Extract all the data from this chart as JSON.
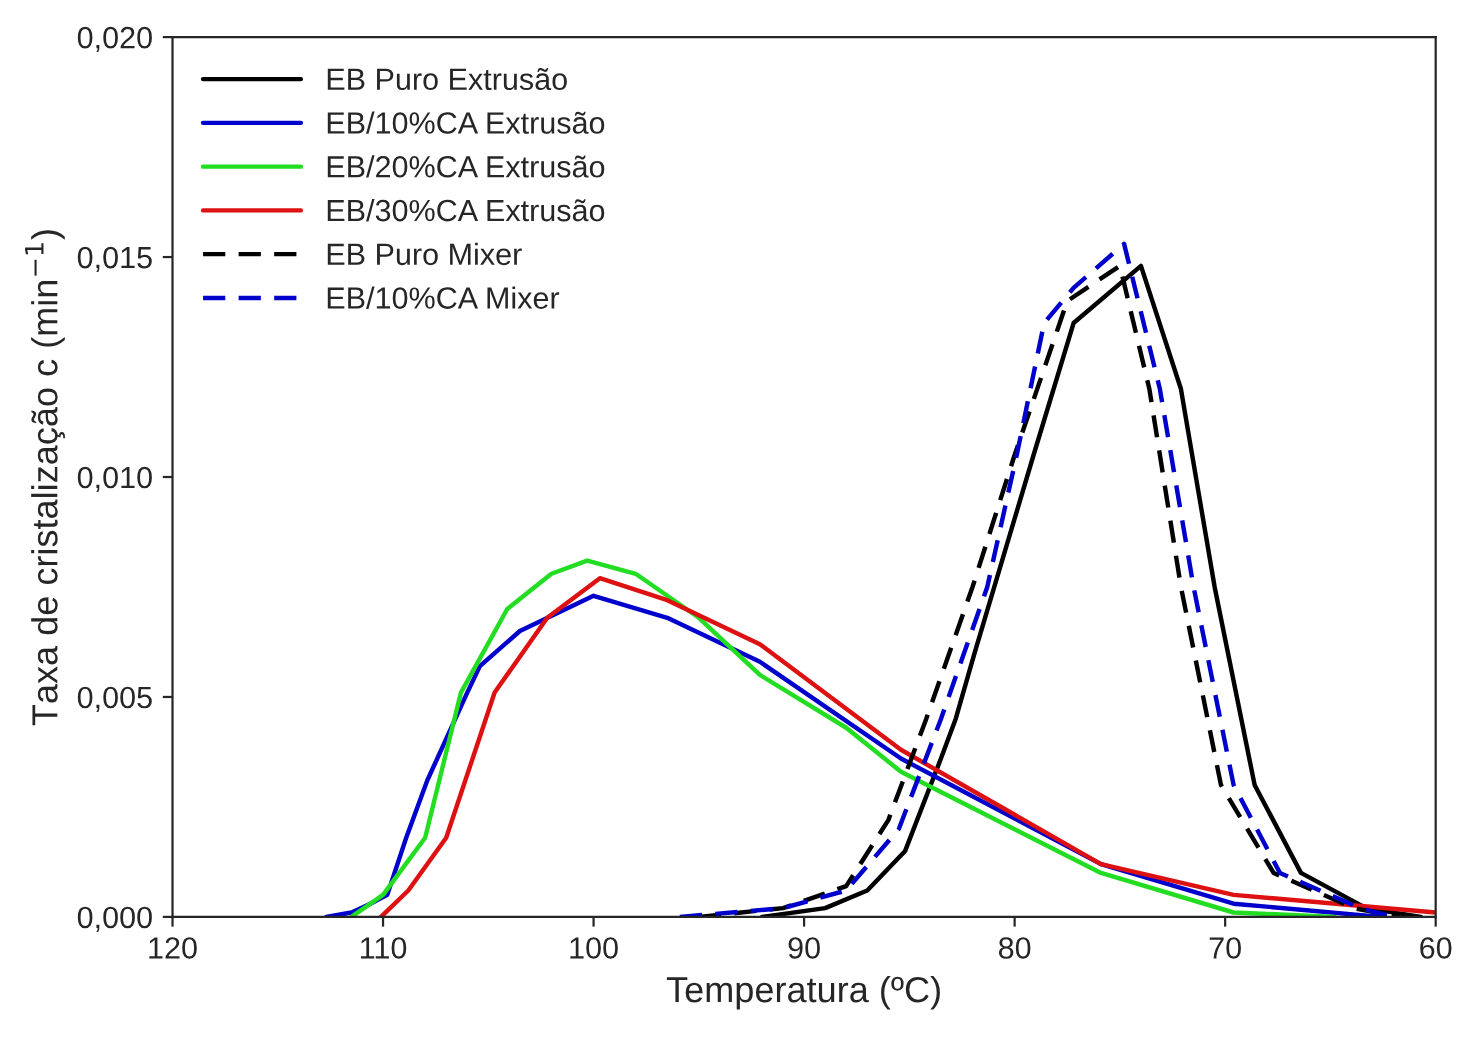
{
  "chart_data": {
    "type": "line",
    "xlabel": "Temperatura (ºC)",
    "ylabel": "Taxa de cristalização c (min$^{−1}$)",
    "xlim": [
      120,
      60
    ],
    "ylim": [
      0,
      0.02
    ],
    "xticks": [
      120,
      110,
      100,
      90,
      80,
      70,
      60
    ],
    "yticks": [
      {
        "value": 0,
        "label": "0,000"
      },
      {
        "value": 0.005,
        "label": "0,005"
      },
      {
        "value": 0.01,
        "label": "0,010"
      },
      {
        "value": 0.015,
        "label": "0,015"
      },
      {
        "value": 0.02,
        "label": "0,020"
      }
    ],
    "grid": false,
    "legend": "top left",
    "marker": "none",
    "series": [
      {
        "name": "EB Puro Extrusão",
        "color": "#000000",
        "line_style": "solid",
        "x": [
          92,
          89,
          87,
          85.2,
          83.5,
          82.8,
          81.9,
          79.1,
          77.2,
          74.0,
          72.1,
          70.5,
          68.6,
          66.4,
          63.3,
          60.7
        ],
        "values": [
          0,
          0.0002,
          0.0006,
          0.0015,
          0.0036,
          0.0045,
          0.006,
          0.0105,
          0.0135,
          0.0148,
          0.012,
          0.0075,
          0.003,
          0.001,
          0.0002,
          0
        ]
      },
      {
        "name": "EB/10%CA Extrusão",
        "color": "#0000cc",
        "line_style": "solid",
        "x": [
          112.7,
          111.5,
          110.6,
          109.8,
          108.9,
          107.9,
          106.0,
          105.4,
          103.5,
          100.0,
          96.5,
          92.1,
          85.4,
          75.9,
          69.6,
          62.6
        ],
        "values": [
          0,
          0.0001,
          0.0003,
          0.0005,
          0.0018,
          0.0031,
          0.0051,
          0.0057,
          0.0065,
          0.0073,
          0.0068,
          0.0058,
          0.0036,
          0.0012,
          0.0003,
          0
        ]
      },
      {
        "name": "EB/20%CA Extrusão",
        "color": "#22dd22",
        "line_style": "solid",
        "x": [
          111.5,
          110.0,
          108.0,
          106.3,
          104.1,
          102.0,
          100.3,
          98.0,
          95.0,
          92.1,
          88.0,
          85.4,
          75.9,
          69.6,
          64.8
        ],
        "values": [
          0,
          0.0005,
          0.0018,
          0.0051,
          0.007,
          0.0078,
          0.0081,
          0.0078,
          0.0068,
          0.0055,
          0.0043,
          0.0033,
          0.001,
          0.0001,
          0
        ]
      },
      {
        "name": "EB/30%CA Extrusão",
        "color": "#dd1111",
        "line_style": "solid",
        "x": [
          110.1,
          108.8,
          107.0,
          104.7,
          102.2,
          99.7,
          96.5,
          92.1,
          85.4,
          75.9,
          69.6,
          60
        ],
        "values": [
          0,
          0.0006,
          0.0018,
          0.0051,
          0.0068,
          0.0077,
          0.0072,
          0.0062,
          0.0038,
          0.0012,
          0.0005,
          0.0001
        ]
      },
      {
        "name": "EB Puro Mixer",
        "color": "#000000",
        "line_style": "dashed",
        "x": [
          95,
          91,
          88,
          86,
          84.2,
          82.0,
          80.0,
          77.5,
          75.0,
          73.6,
          72.1,
          70.2,
          67.7,
          63.9,
          61.7
        ],
        "values": [
          0,
          0.0002,
          0.0007,
          0.0022,
          0.0045,
          0.0075,
          0.0105,
          0.014,
          0.0148,
          0.012,
          0.0075,
          0.003,
          0.001,
          0.0002,
          0
        ]
      },
      {
        "name": "EB/10%CA Mixer",
        "color": "#0000cc",
        "line_style": "dashed",
        "x": [
          95.9,
          91,
          88,
          85.5,
          83.5,
          81.3,
          79.9,
          78.6,
          77.2,
          74.8,
          73.1,
          71.5,
          69.6,
          67.4,
          63.6,
          62.0
        ],
        "values": [
          0,
          0.0002,
          0.0006,
          0.002,
          0.0045,
          0.0075,
          0.0105,
          0.0135,
          0.0143,
          0.0153,
          0.012,
          0.0075,
          0.003,
          0.001,
          0.0002,
          0
        ]
      }
    ]
  }
}
